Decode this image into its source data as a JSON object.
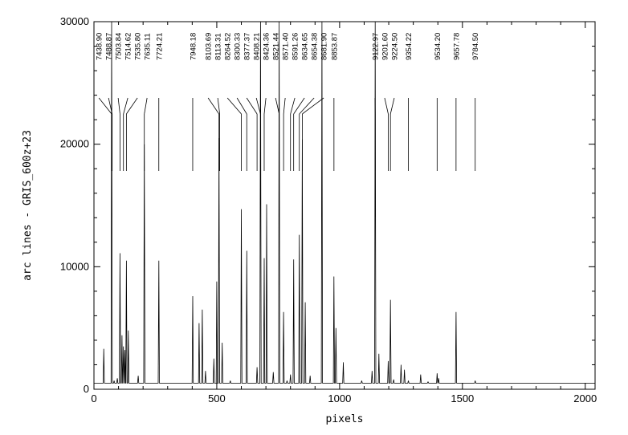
{
  "chart_data": {
    "type": "line",
    "title": "",
    "xlabel": "pixels",
    "ylabel": "arc lines - GRIS_600z+23",
    "xlim": [
      0,
      2040
    ],
    "ylim": [
      0,
      30000
    ],
    "x_ticks": [
      0,
      500,
      1000,
      1500,
      2000
    ],
    "y_ticks": [
      0,
      10000,
      20000,
      30000
    ],
    "x_tick_labels": [
      "0",
      "500",
      "1000",
      "1500",
      "2000"
    ],
    "y_tick_labels": [
      "0",
      "10000",
      "20000",
      "30000"
    ],
    "grid": false,
    "legend": "none",
    "baseline": 500,
    "peaks": [
      {
        "x": 40,
        "y": 3300
      },
      {
        "x": 72,
        "y": 30000
      },
      {
        "x": 82,
        "y": 700
      },
      {
        "x": 95,
        "y": 900
      },
      {
        "x": 106,
        "y": 11100
      },
      {
        "x": 114,
        "y": 4400
      },
      {
        "x": 120,
        "y": 3500
      },
      {
        "x": 126,
        "y": 3200
      },
      {
        "x": 132,
        "y": 10500
      },
      {
        "x": 140,
        "y": 4800
      },
      {
        "x": 180,
        "y": 1100
      },
      {
        "x": 205,
        "y": 20000
      },
      {
        "x": 264,
        "y": 10500
      },
      {
        "x": 402,
        "y": 7600
      },
      {
        "x": 428,
        "y": 5400
      },
      {
        "x": 441,
        "y": 6500
      },
      {
        "x": 454,
        "y": 1500
      },
      {
        "x": 488,
        "y": 2500
      },
      {
        "x": 500,
        "y": 8800
      },
      {
        "x": 509,
        "y": 20500
      },
      {
        "x": 522,
        "y": 3800
      },
      {
        "x": 555,
        "y": 700
      },
      {
        "x": 600,
        "y": 14700
      },
      {
        "x": 622,
        "y": 11300
      },
      {
        "x": 664,
        "y": 1800
      },
      {
        "x": 678,
        "y": 30000
      },
      {
        "x": 693,
        "y": 10700
      },
      {
        "x": 703,
        "y": 15100
      },
      {
        "x": 730,
        "y": 1400
      },
      {
        "x": 754,
        "y": 30000
      },
      {
        "x": 772,
        "y": 6300
      },
      {
        "x": 786,
        "y": 700
      },
      {
        "x": 800,
        "y": 1200
      },
      {
        "x": 813,
        "y": 10600
      },
      {
        "x": 836,
        "y": 12600
      },
      {
        "x": 848,
        "y": 20400
      },
      {
        "x": 860,
        "y": 7100
      },
      {
        "x": 880,
        "y": 1100
      },
      {
        "x": 928,
        "y": 30000
      },
      {
        "x": 977,
        "y": 9200
      },
      {
        "x": 985,
        "y": 5000
      },
      {
        "x": 1015,
        "y": 2200
      },
      {
        "x": 1090,
        "y": 700
      },
      {
        "x": 1132,
        "y": 1500
      },
      {
        "x": 1145,
        "y": 30000
      },
      {
        "x": 1160,
        "y": 2900
      },
      {
        "x": 1198,
        "y": 2300
      },
      {
        "x": 1207,
        "y": 7300
      },
      {
        "x": 1220,
        "y": 800
      },
      {
        "x": 1250,
        "y": 2000
      },
      {
        "x": 1264,
        "y": 1600
      },
      {
        "x": 1280,
        "y": 700
      },
      {
        "x": 1330,
        "y": 1200
      },
      {
        "x": 1360,
        "y": 600
      },
      {
        "x": 1397,
        "y": 1300
      },
      {
        "x": 1403,
        "y": 900
      },
      {
        "x": 1474,
        "y": 6300
      },
      {
        "x": 1552,
        "y": 700
      }
    ],
    "line_ids": [
      {
        "label": "7438.90",
        "x": 72
      },
      {
        "label": "7488.87",
        "x": 74
      },
      {
        "label": "7503.84",
        "x": 106
      },
      {
        "label": "7514.62",
        "x": 120
      },
      {
        "label": "7535.80",
        "x": 132
      },
      {
        "label": "7635.11",
        "x": 205
      },
      {
        "label": "7724.21",
        "x": 264
      },
      {
        "label": "7948.18",
        "x": 402
      },
      {
        "label": "8103.69",
        "x": 509
      },
      {
        "label": "8113.31",
        "x": 512
      },
      {
        "label": "8264.52",
        "x": 600
      },
      {
        "label": "8300.33",
        "x": 622
      },
      {
        "label": "8377.37",
        "x": 664
      },
      {
        "label": "8408.21",
        "x": 678
      },
      {
        "label": "8424.36",
        "x": 693
      },
      {
        "label": "8521.44",
        "x": 754
      },
      {
        "label": "8571.40",
        "x": 772
      },
      {
        "label": "8591.26",
        "x": 800
      },
      {
        "label": "8634.65",
        "x": 813
      },
      {
        "label": "8654.38",
        "x": 836
      },
      {
        "label": "8681.90",
        "x": 848
      },
      {
        "label": "8853.87",
        "x": 977
      },
      {
        "label": "9122.97",
        "x": 1145
      },
      {
        "label": "9201.60",
        "x": 1198
      },
      {
        "label": "9224.50",
        "x": 1207
      },
      {
        "label": "9354.22",
        "x": 1280
      },
      {
        "label": "9534.20",
        "x": 1397
      },
      {
        "label": "9657.78",
        "x": 1474
      },
      {
        "label": "9784.50",
        "x": 1552
      }
    ]
  }
}
